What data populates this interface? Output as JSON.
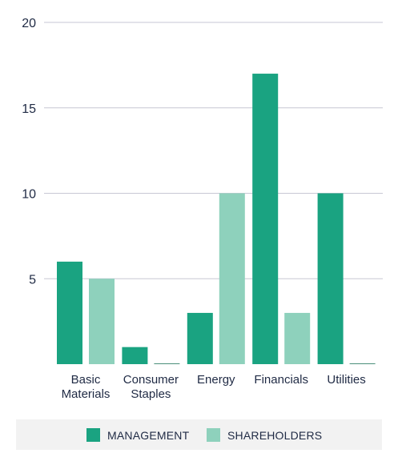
{
  "chart_data": {
    "type": "bar",
    "title": "",
    "xlabel": "",
    "ylabel": "",
    "ylim": [
      0,
      20
    ],
    "yticks": [
      5,
      10,
      15,
      20
    ],
    "grid": true,
    "legend_position": "bottom",
    "categories": [
      [
        "Basic",
        "Materials"
      ],
      [
        "Consumer",
        "Staples"
      ],
      [
        "Energy"
      ],
      [
        "Financials"
      ],
      [
        "Utilities"
      ]
    ],
    "series": [
      {
        "name": "MANAGEMENT",
        "color": "#1aa381",
        "values": [
          6,
          1,
          3,
          17,
          10
        ]
      },
      {
        "name": "SHAREHOLDERS",
        "color": "#8ed1bc",
        "values": [
          5,
          0,
          10,
          3,
          0
        ]
      }
    ],
    "colors": {
      "gridline": "#c7c7d4",
      "baseline": "#1f2a44",
      "text": "#1f2a44",
      "legend_bg": "#f2f2f2"
    }
  }
}
